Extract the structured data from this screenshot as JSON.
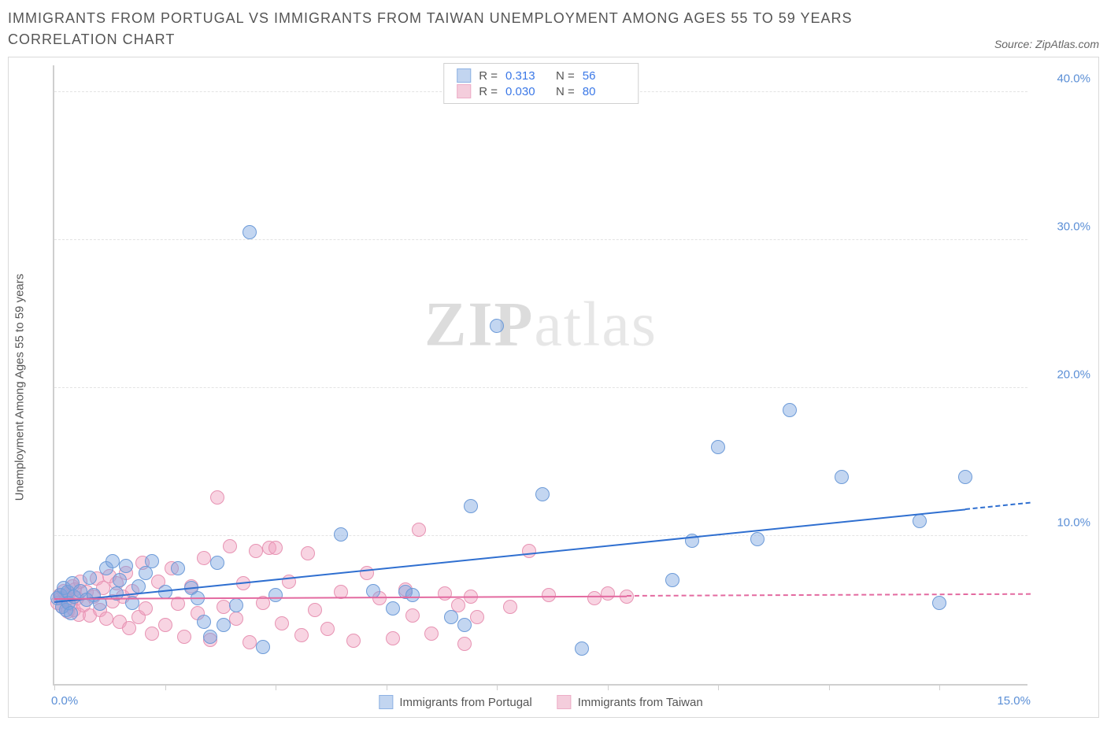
{
  "title": "IMMIGRANTS FROM PORTUGAL VS IMMIGRANTS FROM TAIWAN UNEMPLOYMENT AMONG AGES 55 TO 59 YEARS CORRELATION CHART",
  "source": "Source: ZipAtlas.com",
  "ylabel": "Unemployment Among Ages 55 to 59 years",
  "watermark_a": "ZIP",
  "watermark_b": "atlas",
  "chart": {
    "type": "scatter",
    "xlim": [
      0,
      15
    ],
    "ylim": [
      0,
      42
    ],
    "xtick_positions": [
      0,
      1.7,
      3.4,
      5.1,
      6.8,
      8.5,
      10.2,
      11.9,
      13.6
    ],
    "xtick_label_left": "0.0%",
    "xtick_label_right": "15.0%",
    "ytick_positions": [
      10,
      20,
      30,
      40
    ],
    "ytick_labels": [
      "10.0%",
      "20.0%",
      "30.0%",
      "40.0%"
    ],
    "grid_color": "#e3e3e3",
    "axis_color": "#cfcfcf",
    "background_color": "#ffffff"
  },
  "series": [
    {
      "name": "Immigrants from Portugal",
      "color_fill": "rgba(121,163,224,0.45)",
      "color_stroke": "#6d9bd8",
      "swatch_fill": "#c2d5f0",
      "swatch_stroke": "#8eb2e4",
      "marker_radius": 9,
      "stats": {
        "R": "0.313",
        "N": "56"
      },
      "trend": {
        "x1": 0,
        "y1": 5.5,
        "x2": 15,
        "y2": 12.2,
        "solid_until_x": 14.0,
        "color": "#2f6fd0"
      },
      "points": [
        [
          0.05,
          5.8
        ],
        [
          0.1,
          6.0
        ],
        [
          0.12,
          5.2
        ],
        [
          0.15,
          6.5
        ],
        [
          0.18,
          5.0
        ],
        [
          0.2,
          6.2
        ],
        [
          0.22,
          5.5
        ],
        [
          0.25,
          4.8
        ],
        [
          0.28,
          6.8
        ],
        [
          0.3,
          5.9
        ],
        [
          0.4,
          6.3
        ],
        [
          0.5,
          5.7
        ],
        [
          0.55,
          7.2
        ],
        [
          0.6,
          6.0
        ],
        [
          0.7,
          5.4
        ],
        [
          0.8,
          7.8
        ],
        [
          0.9,
          8.3
        ],
        [
          0.95,
          6.1
        ],
        [
          1.0,
          7.0
        ],
        [
          1.1,
          8.0
        ],
        [
          1.2,
          5.5
        ],
        [
          1.3,
          6.6
        ],
        [
          1.4,
          7.5
        ],
        [
          1.5,
          8.3
        ],
        [
          1.7,
          6.2
        ],
        [
          1.9,
          7.8
        ],
        [
          2.1,
          6.5
        ],
        [
          2.2,
          5.8
        ],
        [
          2.3,
          4.2
        ],
        [
          2.4,
          3.2
        ],
        [
          2.5,
          8.2
        ],
        [
          2.6,
          4.0
        ],
        [
          2.8,
          5.3
        ],
        [
          3.0,
          30.5
        ],
        [
          3.2,
          2.5
        ],
        [
          3.4,
          6.0
        ],
        [
          4.4,
          10.1
        ],
        [
          4.9,
          6.3
        ],
        [
          5.2,
          5.1
        ],
        [
          5.4,
          6.2
        ],
        [
          5.5,
          6.0
        ],
        [
          6.1,
          4.5
        ],
        [
          6.3,
          4.0
        ],
        [
          6.4,
          12.0
        ],
        [
          6.8,
          24.2
        ],
        [
          7.5,
          12.8
        ],
        [
          8.1,
          2.4
        ],
        [
          9.5,
          7.0
        ],
        [
          9.8,
          9.7
        ],
        [
          10.2,
          16.0
        ],
        [
          10.8,
          9.8
        ],
        [
          11.3,
          18.5
        ],
        [
          12.1,
          14.0
        ],
        [
          13.3,
          11.0
        ],
        [
          13.6,
          5.5
        ],
        [
          14.0,
          14.0
        ]
      ]
    },
    {
      "name": "Immigrants from Taiwan",
      "color_fill": "rgba(240,160,190,0.45)",
      "color_stroke": "#e793b3",
      "swatch_fill": "#f4cddc",
      "swatch_stroke": "#edadc7",
      "marker_radius": 9,
      "stats": {
        "R": "0.030",
        "N": "80"
      },
      "trend": {
        "x1": 0,
        "y1": 5.7,
        "x2": 15,
        "y2": 6.0,
        "solid_until_x": 8.8,
        "color": "#e36aa0"
      },
      "points": [
        [
          0.05,
          5.5
        ],
        [
          0.08,
          6.0
        ],
        [
          0.1,
          5.8
        ],
        [
          0.12,
          5.2
        ],
        [
          0.15,
          6.3
        ],
        [
          0.18,
          5.7
        ],
        [
          0.2,
          4.9
        ],
        [
          0.22,
          6.1
        ],
        [
          0.25,
          5.4
        ],
        [
          0.28,
          6.6
        ],
        [
          0.3,
          5.0
        ],
        [
          0.32,
          6.4
        ],
        [
          0.35,
          5.8
        ],
        [
          0.38,
          4.7
        ],
        [
          0.4,
          6.9
        ],
        [
          0.45,
          5.3
        ],
        [
          0.5,
          6.2
        ],
        [
          0.55,
          4.6
        ],
        [
          0.6,
          5.9
        ],
        [
          0.65,
          7.1
        ],
        [
          0.7,
          5.0
        ],
        [
          0.75,
          6.5
        ],
        [
          0.8,
          4.4
        ],
        [
          0.85,
          7.3
        ],
        [
          0.9,
          5.6
        ],
        [
          0.95,
          6.8
        ],
        [
          1.0,
          4.2
        ],
        [
          1.05,
          5.9
        ],
        [
          1.1,
          7.5
        ],
        [
          1.15,
          3.8
        ],
        [
          1.2,
          6.3
        ],
        [
          1.3,
          4.5
        ],
        [
          1.35,
          8.2
        ],
        [
          1.4,
          5.1
        ],
        [
          1.5,
          3.4
        ],
        [
          1.6,
          6.9
        ],
        [
          1.7,
          4.0
        ],
        [
          1.8,
          7.8
        ],
        [
          1.9,
          5.4
        ],
        [
          2.0,
          3.2
        ],
        [
          2.1,
          6.6
        ],
        [
          2.2,
          4.8
        ],
        [
          2.3,
          8.5
        ],
        [
          2.4,
          3.0
        ],
        [
          2.5,
          12.6
        ],
        [
          2.6,
          5.2
        ],
        [
          2.7,
          9.3
        ],
        [
          2.8,
          4.4
        ],
        [
          2.9,
          6.8
        ],
        [
          3.0,
          2.8
        ],
        [
          3.1,
          9.0
        ],
        [
          3.2,
          5.5
        ],
        [
          3.3,
          9.2
        ],
        [
          3.4,
          9.2
        ],
        [
          3.5,
          4.1
        ],
        [
          3.6,
          6.9
        ],
        [
          3.8,
          3.3
        ],
        [
          3.9,
          8.8
        ],
        [
          4.0,
          5.0
        ],
        [
          4.2,
          3.7
        ],
        [
          4.4,
          6.2
        ],
        [
          4.6,
          2.9
        ],
        [
          4.8,
          7.5
        ],
        [
          5.0,
          5.8
        ],
        [
          5.2,
          3.1
        ],
        [
          5.4,
          6.4
        ],
        [
          5.5,
          4.6
        ],
        [
          5.6,
          10.4
        ],
        [
          5.8,
          3.4
        ],
        [
          6.0,
          6.1
        ],
        [
          6.2,
          5.3
        ],
        [
          6.3,
          2.7
        ],
        [
          6.4,
          5.9
        ],
        [
          6.5,
          4.5
        ],
        [
          7.0,
          5.2
        ],
        [
          7.3,
          9.0
        ],
        [
          7.6,
          6.0
        ],
        [
          8.3,
          5.8
        ],
        [
          8.5,
          6.1
        ],
        [
          8.8,
          5.9
        ]
      ]
    }
  ],
  "legend_top_labels": {
    "R": "R =",
    "N": "N ="
  },
  "legend_bottom": [
    "Immigrants from Portugal",
    "Immigrants from Taiwan"
  ]
}
